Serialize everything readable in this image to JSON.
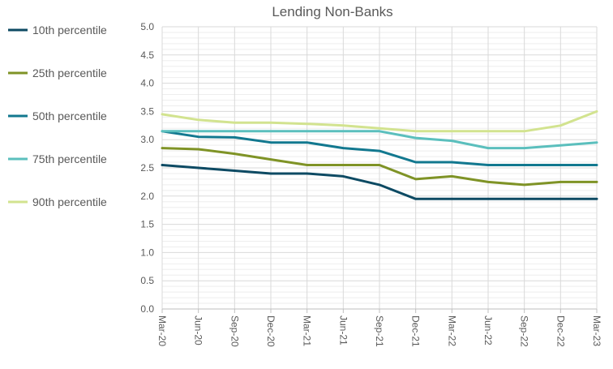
{
  "chart_data": {
    "type": "line",
    "title": "Lending Non-Banks",
    "xlabel": "",
    "ylabel": "",
    "ylim": [
      0,
      5
    ],
    "yticks": [
      "0.0",
      "0.5",
      "1.0",
      "1.5",
      "2.0",
      "2.5",
      "3.0",
      "3.5",
      "4.0",
      "4.5",
      "5.0"
    ],
    "grid": true,
    "legend_position": "left",
    "categories": [
      "Mar-20",
      "Jun-20",
      "Sep-20",
      "Dec-20",
      "Mar-21",
      "Jun-21",
      "Sep-21",
      "Dec-21",
      "Mar-22",
      "Jun-22",
      "Sep-22",
      "Dec-22",
      "Mar-23"
    ],
    "series": [
      {
        "name": "10th percentile",
        "color": "#0d4a63",
        "values": [
          2.55,
          2.5,
          2.45,
          2.4,
          2.4,
          2.35,
          2.2,
          1.95,
          1.95,
          1.95,
          1.95,
          1.95,
          1.95
        ]
      },
      {
        "name": "25th percentile",
        "color": "#7f9326",
        "values": [
          2.85,
          2.83,
          2.75,
          2.65,
          2.55,
          2.55,
          2.55,
          2.3,
          2.35,
          2.25,
          2.2,
          2.25,
          2.25
        ]
      },
      {
        "name": "50th percentile",
        "color": "#12788f",
        "values": [
          3.15,
          3.05,
          3.04,
          2.95,
          2.95,
          2.85,
          2.8,
          2.6,
          2.6,
          2.55,
          2.55,
          2.55,
          2.55
        ]
      },
      {
        "name": "75th percentile",
        "color": "#5bbfbd",
        "values": [
          3.15,
          3.15,
          3.15,
          3.15,
          3.15,
          3.15,
          3.15,
          3.03,
          2.98,
          2.85,
          2.85,
          2.9,
          2.95
        ]
      },
      {
        "name": "90th percentile",
        "color": "#d2e38f",
        "values": [
          3.45,
          3.35,
          3.3,
          3.3,
          3.28,
          3.25,
          3.2,
          3.15,
          3.15,
          3.15,
          3.15,
          3.25,
          3.5
        ]
      }
    ]
  }
}
